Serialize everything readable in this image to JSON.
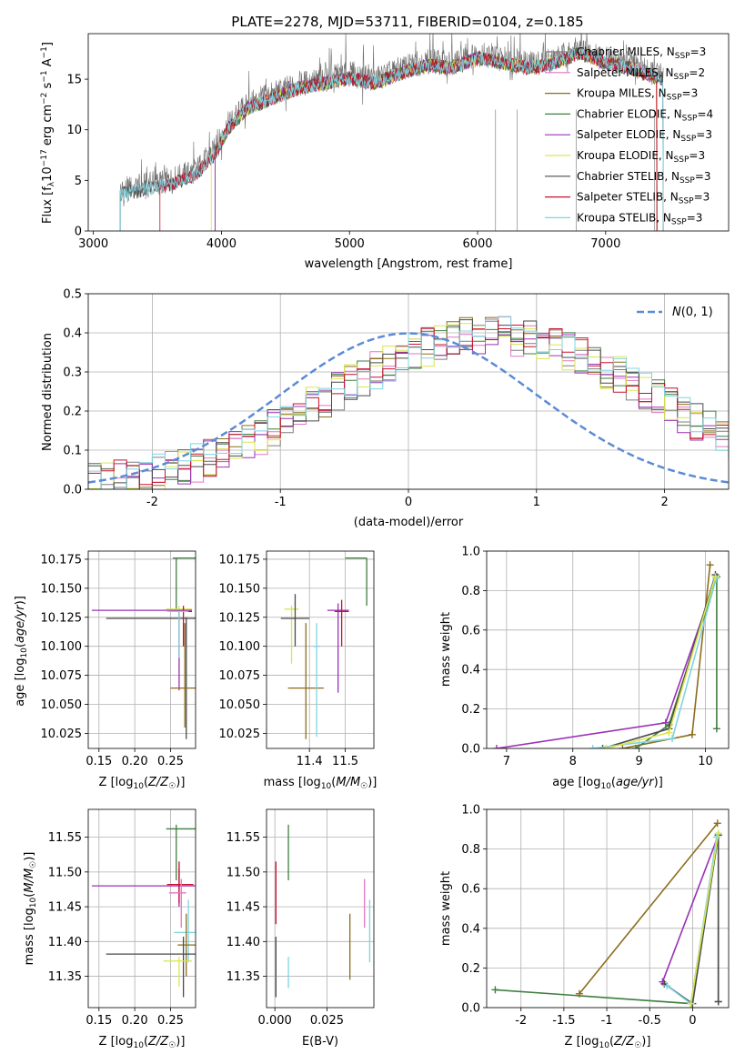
{
  "figure_title": "PLATE=2278, MJD=53711, FIBERID=0104, z=0.185",
  "model_colors": [
    "#7f7f7f",
    "#e377c2",
    "#8c6d1c",
    "#3f7f3f",
    "#9b30b8",
    "#d9e64d",
    "#4a4a4a",
    "#c8102e",
    "#7fd4e0"
  ],
  "chart_data": [
    {
      "type": "line",
      "panel": "spectrum",
      "xlabel": "wavelength [Angstrom, rest frame]",
      "ylabel": "Flux [f_λ 10^-17 erg cm^-2 s^-1 A^-1]",
      "xlim": [
        2960,
        7960
      ],
      "ylim": [
        0,
        19.5
      ],
      "xticks": [
        3000,
        4000,
        5000,
        6000,
        7000
      ],
      "yticks": [
        0,
        5,
        10,
        15
      ],
      "grid": false,
      "legend": "right",
      "legend_entries": [
        "Chabrier MILES, N_SSP=3",
        "Salpeter MILES, N_SSP=2",
        "Kroupa MILES, N_SSP=3",
        "Chabrier ELODIE, N_SSP=4",
        "Salpeter ELODIE, N_SSP=3",
        "Kroupa ELODIE, N_SSP=3",
        "Chabrier STELIB, N_SSP=3",
        "Salpeter STELIB, N_SSP=3",
        "Kroupa STELIB, N_SSP=3"
      ],
      "continuum": {
        "x": [
          3210,
          3400,
          3600,
          3800,
          3950,
          4050,
          4200,
          4400,
          4600,
          4800,
          5000,
          5200,
          5400,
          5600,
          5800,
          6000,
          6200,
          6400,
          6600,
          6800,
          7000,
          7200,
          7400
        ],
        "y": [
          4.0,
          4.5,
          5.0,
          6.0,
          8.0,
          10.5,
          12.5,
          13.5,
          14.5,
          15.0,
          15.5,
          15.0,
          16.0,
          16.8,
          16.5,
          17.5,
          17.0,
          16.5,
          17.0,
          18.0,
          17.0,
          16.5,
          15.5
        ]
      },
      "model_starts": [
        3210,
        3950,
        3950,
        3950,
        3950,
        3920,
        3210,
        3520,
        3210
      ],
      "model_ends": [
        7450,
        7400,
        7400,
        7400,
        7400,
        7400,
        7450,
        7400,
        7450
      ]
    },
    {
      "type": "line",
      "panel": "residual_histogram",
      "xlabel": "(data-model)/error",
      "ylabel": "Normed distribution",
      "xlim": [
        -2.5,
        2.5
      ],
      "ylim": [
        0,
        0.5
      ],
      "xticks": [
        -2,
        -1,
        0,
        1,
        2
      ],
      "yticks": [
        0.0,
        0.1,
        0.2,
        0.3,
        0.4,
        0.5
      ],
      "grid": true,
      "legend": "top-right",
      "legend_entries": [
        "N(0,1)"
      ],
      "bin_width": 0.1,
      "hist_base": [
        0.018,
        0.02,
        0.025,
        0.029,
        0.035,
        0.041,
        0.049,
        0.058,
        0.068,
        0.08,
        0.092,
        0.106,
        0.121,
        0.137,
        0.155,
        0.174,
        0.192,
        0.211,
        0.231,
        0.25,
        0.27,
        0.289,
        0.306,
        0.322,
        0.338,
        0.352,
        0.364,
        0.375,
        0.384,
        0.39,
        0.394,
        0.396,
        0.394,
        0.39,
        0.384,
        0.375,
        0.364,
        0.352,
        0.338,
        0.322,
        0.306,
        0.289,
        0.27,
        0.25,
        0.231,
        0.211,
        0.192,
        0.174,
        0.155,
        0.137,
        0.121
      ],
      "gaussian_mu": 0,
      "gaussian_sigma": 1
    },
    {
      "type": "scatter",
      "panel": "age_vs_Z",
      "xlabel": "Z [log10(Z/Z☉)]",
      "ylabel": "age [log10(age/yr)]",
      "xlim": [
        0.135,
        0.285
      ],
      "ylim": [
        10.012,
        10.182
      ],
      "xticks": [
        0.15,
        0.2,
        0.25
      ],
      "yticks": [
        10.025,
        10.05,
        10.075,
        10.1,
        10.125,
        10.15,
        10.175
      ],
      "grid": true,
      "points": [
        {
          "x": 0.258,
          "y": 10.176,
          "xerr": [
            0.253,
            0.285
          ],
          "yerr": [
            10.132,
            10.176
          ],
          "c": 3
        },
        {
          "x": 0.262,
          "y": 10.132,
          "xerr": [
            0.244,
            0.28
          ],
          "yerr": [
            10.09,
            10.135
          ],
          "c": 5
        },
        {
          "x": 0.262,
          "y": 10.131,
          "xerr": [
            0.14,
            0.28
          ],
          "yerr": [
            10.062,
            10.13
          ],
          "c": 4
        },
        {
          "x": 0.268,
          "y": 10.13,
          "xerr": [
            0.25,
            0.28
          ],
          "yerr": [
            10.1,
            10.135
          ],
          "c": 7
        },
        {
          "x": 0.272,
          "y": 10.124,
          "xerr": [
            0.16,
            0.285
          ],
          "yerr": [
            10.02,
            10.125
          ],
          "c": 6
        },
        {
          "x": 0.27,
          "y": 10.064,
          "xerr": [
            0.25,
            0.285
          ],
          "yerr": [
            10.03,
            10.12
          ],
          "c": 2
        },
        {
          "x": 0.262,
          "y": 10.13,
          "xerr": [
            0.245,
            0.275
          ],
          "yerr": [
            10.09,
            10.13
          ],
          "c": 8
        }
      ]
    },
    {
      "type": "scatter",
      "panel": "age_vs_mass",
      "xlabel": "mass [log10(M/M☉)]",
      "ylabel": "",
      "xlim": [
        11.28,
        11.58
      ],
      "ylim": [
        10.012,
        10.182
      ],
      "xticks": [
        11.4,
        11.5
      ],
      "yticks": [
        10.025,
        10.05,
        10.075,
        10.1,
        10.125,
        10.15,
        10.175
      ],
      "grid": true,
      "points": [
        {
          "x": 11.56,
          "y": 10.176,
          "xerr": [
            11.5,
            11.56
          ],
          "yerr": [
            10.135,
            10.176
          ],
          "c": 3
        },
        {
          "x": 11.35,
          "y": 10.132,
          "xerr": [
            11.33,
            11.37
          ],
          "yerr": [
            10.085,
            10.135
          ],
          "c": 5
        },
        {
          "x": 11.48,
          "y": 10.131,
          "xerr": [
            11.45,
            11.51
          ],
          "yerr": [
            10.06,
            10.137
          ],
          "c": 4
        },
        {
          "x": 11.49,
          "y": 10.13,
          "xerr": [
            11.47,
            11.51
          ],
          "yerr": [
            10.1,
            10.14
          ],
          "c": 7
        },
        {
          "x": 11.36,
          "y": 10.124,
          "xerr": [
            11.32,
            11.4
          ],
          "yerr": [
            10.1,
            10.145
          ],
          "c": 6
        },
        {
          "x": 11.39,
          "y": 10.064,
          "xerr": [
            11.34,
            11.44
          ],
          "yerr": [
            10.02,
            10.12
          ],
          "c": 2
        },
        {
          "x": 11.42,
          "y": 10.1,
          "xerr": [
            11.41,
            11.43
          ],
          "yerr": [
            10.022,
            10.12
          ],
          "c": 8
        }
      ]
    },
    {
      "type": "line",
      "panel": "mass_weight_vs_age",
      "xlabel": "age [log10(age/yr)]",
      "ylabel": "mass weight",
      "xlim": [
        6.7,
        10.35
      ],
      "ylim": [
        0,
        1
      ],
      "xticks": [
        7,
        8,
        9,
        10
      ],
      "yticks": [
        0.0,
        0.2,
        0.4,
        0.6,
        0.8,
        1.0
      ],
      "grid": true,
      "series": [
        {
          "c": 4,
          "x": [
            6.85,
            9.4,
            10.17
          ],
          "y": [
            0.0,
            0.13,
            0.87
          ]
        },
        {
          "c": 2,
          "x": [
            8.75,
            9.8,
            10.07
          ],
          "y": [
            0.0,
            0.07,
            0.93
          ]
        },
        {
          "c": 3,
          "x": [
            8.95,
            9.45,
            10.17,
            10.17
          ],
          "y": [
            0.0,
            0.12,
            0.87,
            0.1
          ]
        },
        {
          "c": 6,
          "x": [
            8.45,
            9.45,
            10.15
          ],
          "y": [
            0.0,
            0.1,
            0.88
          ]
        },
        {
          "c": 8,
          "x": [
            8.3,
            9.5,
            10.16
          ],
          "y": [
            0.0,
            0.05,
            0.86
          ]
        },
        {
          "c": 5,
          "x": [
            8.5,
            9.45,
            10.15
          ],
          "y": [
            0.0,
            0.08,
            0.87
          ]
        }
      ]
    },
    {
      "type": "scatter",
      "panel": "mass_vs_Z",
      "xlabel": "Z [log10(Z/Z☉)]",
      "ylabel": "mass [log10(M/M☉)]",
      "xlim": [
        0.135,
        0.285
      ],
      "ylim": [
        11.305,
        11.59
      ],
      "xticks": [
        0.15,
        0.2,
        0.25
      ],
      "yticks": [
        11.35,
        11.4,
        11.45,
        11.5,
        11.55
      ],
      "grid": true,
      "points": [
        {
          "x": 0.258,
          "y": 11.562,
          "xerr": [
            0.244,
            0.285
          ],
          "yerr": [
            11.488,
            11.568
          ],
          "c": 3
        },
        {
          "x": 0.262,
          "y": 11.48,
          "xerr": [
            0.14,
            0.285
          ],
          "yerr": [
            11.45,
            11.505
          ],
          "c": 4
        },
        {
          "x": 0.262,
          "y": 11.482,
          "xerr": [
            0.245,
            0.282
          ],
          "yerr": [
            11.455,
            11.515
          ],
          "c": 7
        },
        {
          "x": 0.265,
          "y": 11.47,
          "xerr": [
            0.248,
            0.272
          ],
          "yerr": [
            11.42,
            11.49
          ],
          "c": 1
        },
        {
          "x": 0.275,
          "y": 11.413,
          "xerr": [
            0.255,
            0.285
          ],
          "yerr": [
            11.37,
            11.46
          ],
          "c": 8
        },
        {
          "x": 0.272,
          "y": 11.395,
          "xerr": [
            0.26,
            0.285
          ],
          "yerr": [
            11.35,
            11.44
          ],
          "c": 2
        },
        {
          "x": 0.268,
          "y": 11.382,
          "xerr": [
            0.16,
            0.285
          ],
          "yerr": [
            11.32,
            11.407
          ],
          "c": 6
        },
        {
          "x": 0.262,
          "y": 11.372,
          "xerr": [
            0.24,
            0.28
          ],
          "yerr": [
            11.335,
            11.378
          ],
          "c": 5
        }
      ]
    },
    {
      "type": "scatter",
      "panel": "mass_vs_ebv",
      "xlabel": "E(B-V)",
      "ylabel": "",
      "xlim": [
        -0.004,
        0.0475
      ],
      "ylim": [
        11.305,
        11.59
      ],
      "xticks": [
        0.0,
        0.025
      ],
      "xtick_labels": [
        "0.000",
        "0.025"
      ],
      "yticks": [
        11.35,
        11.4,
        11.45,
        11.5,
        11.55
      ],
      "grid": true,
      "points": [
        {
          "x": 0.0065,
          "y": 11.53,
          "yerr": [
            11.488,
            11.568
          ],
          "c": 3
        },
        {
          "x": 0.0005,
          "y": 11.48,
          "yerr": [
            11.425,
            11.515
          ],
          "c": 7
        },
        {
          "x": 0.0005,
          "y": 11.36,
          "yerr": [
            11.32,
            11.407
          ],
          "c": 6
        },
        {
          "x": 0.0065,
          "y": 11.356,
          "yerr": [
            11.333,
            11.378
          ],
          "c": 8
        },
        {
          "x": 0.036,
          "y": 11.395,
          "yerr": [
            11.345,
            11.44
          ],
          "c": 2
        },
        {
          "x": 0.043,
          "y": 11.455,
          "yerr": [
            11.42,
            11.49
          ],
          "c": 1
        },
        {
          "x": 0.0455,
          "y": 11.415,
          "yerr": [
            11.37,
            11.46
          ],
          "c": 8
        }
      ]
    },
    {
      "type": "line",
      "panel": "mass_weight_vs_Z",
      "xlabel": "Z [log10(Z/Z☉)]",
      "ylabel": "mass weight",
      "xlim": [
        -2.4,
        0.42
      ],
      "ylim": [
        0,
        1
      ],
      "xticks": [
        -2.0,
        -1.5,
        -1.0,
        -0.5,
        0.0
      ],
      "yticks": [
        0.0,
        0.2,
        0.4,
        0.6,
        0.8,
        1.0
      ],
      "grid": true,
      "series": [
        {
          "c": 3,
          "x": [
            -2.3,
            -0.02,
            0.3,
            0.3
          ],
          "y": [
            0.09,
            0.02,
            0.87,
            0.03
          ]
        },
        {
          "c": 2,
          "x": [
            -1.32,
            0.29
          ],
          "y": [
            0.07,
            0.93
          ]
        },
        {
          "c": 4,
          "x": [
            -0.35,
            0.3
          ],
          "y": [
            0.13,
            0.87
          ]
        },
        {
          "c": 6,
          "x": [
            -0.33,
            0.0,
            0.3,
            0.3
          ],
          "y": [
            0.12,
            0.02,
            0.87,
            0.03
          ]
        },
        {
          "c": 8,
          "x": [
            -0.3,
            -0.02,
            0.28
          ],
          "y": [
            0.11,
            0.02,
            0.86
          ]
        },
        {
          "c": 5,
          "x": [
            -0.02,
            0.3
          ],
          "y": [
            0.02,
            0.88
          ]
        }
      ]
    }
  ]
}
